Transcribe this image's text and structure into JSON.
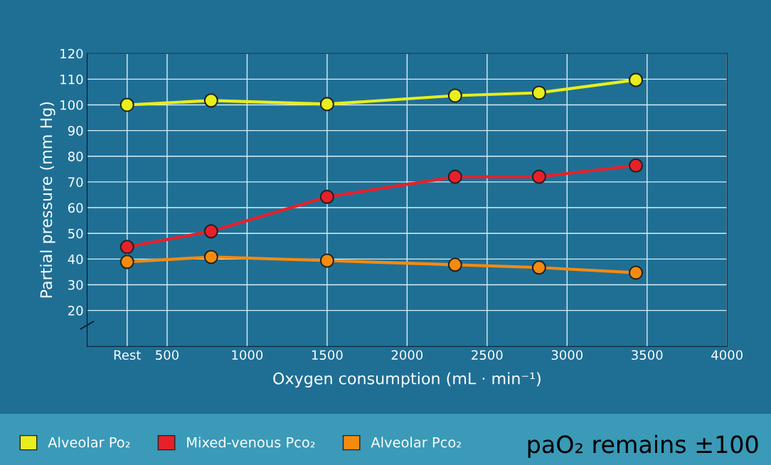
{
  "chart_data": {
    "type": "line",
    "xlabel": "Oxygen consumption (mL · min⁻¹)",
    "ylabel": "Partial pressure (mm Hg)",
    "x": [
      250,
      775,
      1500,
      2300,
      2825,
      3430
    ],
    "series": [
      {
        "name": "Alveolar Po₂",
        "color": "#e8ee1c",
        "values": [
          100,
          101.7,
          100.3,
          103.6,
          104.7,
          109.7
        ]
      },
      {
        "name": "Mixed-venous Pco₂",
        "color": "#e8202a",
        "values": [
          44.7,
          50.8,
          64.2,
          72,
          72,
          76.4
        ]
      },
      {
        "name": "Alveolar Pco₂",
        "color": "#f58a10",
        "values": [
          38.9,
          40.8,
          39.4,
          37.8,
          36.7,
          34.7
        ]
      }
    ],
    "xlim": [
      0,
      4000
    ],
    "xticks": [
      {
        "value": 250,
        "label": "Rest"
      },
      500,
      1000,
      1500,
      2000,
      2500,
      3000,
      3500,
      4000
    ],
    "ylim": [
      6,
      120
    ],
    "yticks": [
      20,
      30,
      40,
      50,
      60,
      70,
      80,
      90,
      100,
      110,
      120
    ],
    "grid": true,
    "legend": "bottom",
    "marker": "circle",
    "line_style": "solid",
    "annotations": [
      "paO₂ remains ±100"
    ]
  }
}
